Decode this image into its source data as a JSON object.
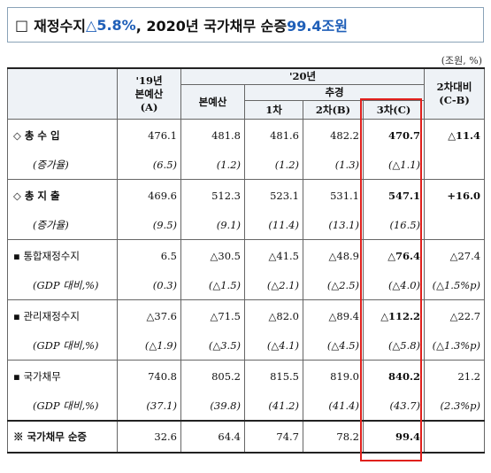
{
  "title": {
    "square": "□",
    "prefix": "재정수지 ",
    "value": "△5.8%",
    "middle": ", 2020년 국가채무 순증 ",
    "debt_value": "99.4조원"
  },
  "unit": "(조원, %)",
  "headers": {
    "col1": "'19년\n본예산\n(A)",
    "year20": "'20년",
    "budget": "본예산",
    "supp": "추경",
    "s1": "1차",
    "s2": "2차(B)",
    "s3": "3차(C)",
    "diff": "2차대비\n(C-B)"
  },
  "rows": [
    {
      "label": "◇ 총 수 입",
      "v": [
        "476.1",
        "481.8",
        "481.6",
        "482.2",
        "470.7",
        "△11.4"
      ],
      "type": "main"
    },
    {
      "label": "(증가율)",
      "v": [
        "(6.5)",
        "(1.2)",
        "(1.2)",
        "(1.3)",
        "(△1.1)",
        ""
      ],
      "type": "sub"
    },
    {
      "label": "◇ 총 지 출",
      "v": [
        "469.6",
        "512.3",
        "523.1",
        "531.1",
        "547.1",
        "+16.0"
      ],
      "type": "main"
    },
    {
      "label": "(증가율)",
      "v": [
        "(9.5)",
        "(9.1)",
        "(11.4)",
        "(13.1)",
        "(16.5)",
        ""
      ],
      "type": "sub"
    },
    {
      "label": "▪ 통합재정수지",
      "v": [
        "6.5",
        "△30.5",
        "△41.5",
        "△48.9",
        "△76.4",
        "△27.4"
      ],
      "type": "main"
    },
    {
      "label": "(GDP 대비,%)",
      "v": [
        "(0.3)",
        "(△1.5)",
        "(△2.1)",
        "(△2.5)",
        "(△4.0)",
        "(△1.5%p)"
      ],
      "type": "sub"
    },
    {
      "label": "▪ 관리재정수지",
      "v": [
        "△37.6",
        "△71.5",
        "△82.0",
        "△89.4",
        "△112.2",
        "△22.7"
      ],
      "type": "main"
    },
    {
      "label": "(GDP 대비,%)",
      "v": [
        "(△1.9)",
        "(△3.5)",
        "(△4.1)",
        "(△4.5)",
        "(△5.8)",
        "(△1.3%p)"
      ],
      "type": "sub"
    },
    {
      "label": "▪ 국가채무",
      "v": [
        "740.8",
        "805.2",
        "815.5",
        "819.0",
        "840.2",
        "21.2"
      ],
      "type": "main"
    },
    {
      "label": "(GDP 대비,%)",
      "v": [
        "(37.1)",
        "(39.8)",
        "(41.2)",
        "(41.4)",
        "(43.7)",
        "(2.3%p)"
      ],
      "type": "sub"
    },
    {
      "label": "※ 국가채무 순증",
      "v": [
        "32.6",
        "64.4",
        "74.7",
        "78.2",
        "99.4",
        ""
      ],
      "type": "last"
    }
  ],
  "colors": {
    "highlight_box": "#e0201c",
    "header_bg": "#eef2f6",
    "title_accent": "#1f5fb8"
  }
}
